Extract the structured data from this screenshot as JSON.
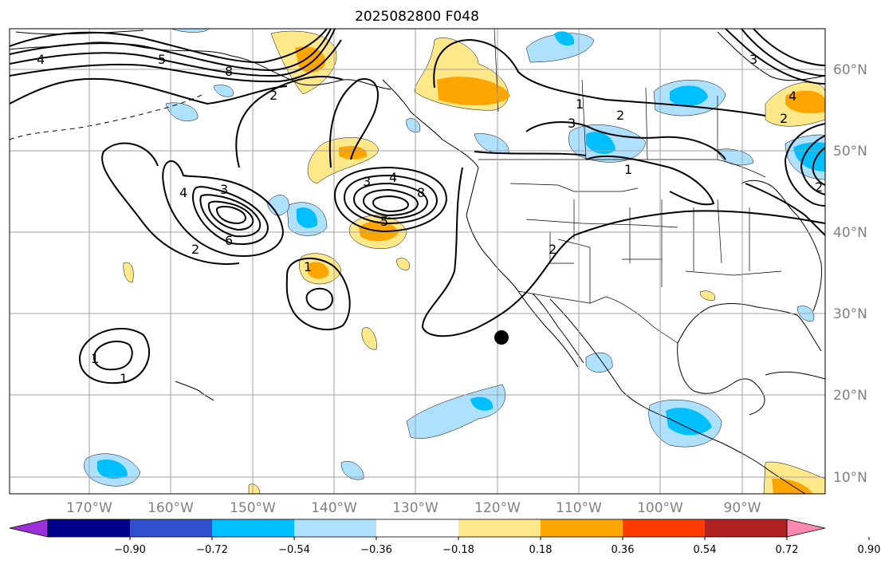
{
  "figure": {
    "title": "2025082800 F048",
    "marker": {
      "label": "forecast point",
      "lon": -119.7,
      "lat": 27.3
    }
  },
  "map": {
    "lon_range": [
      -180,
      -80
    ],
    "lat_range": [
      8,
      65
    ],
    "gridlines": true,
    "lon_labels": [
      "170°W",
      "160°W",
      "150°W",
      "140°W",
      "130°W",
      "120°W",
      "110°W",
      "100°W",
      "90°W"
    ],
    "lat_labels": [
      "60°N",
      "50°N",
      "40°N",
      "30°N",
      "20°N",
      "10°N"
    ],
    "contour_labels": [
      "4",
      "5",
      "8",
      "2",
      "3",
      "4",
      "8",
      "3",
      "4",
      "5",
      "6",
      "1",
      "2",
      "1",
      "1",
      "2",
      "3",
      "1",
      "2",
      "4",
      "2",
      "1",
      "2",
      "3"
    ]
  },
  "colorbar": {
    "ticks": [
      "−0.90",
      "−0.72",
      "−0.54",
      "−0.36",
      "−0.18",
      "0.18",
      "0.36",
      "0.54",
      "0.72",
      "0.90"
    ],
    "colors": [
      "#9b30d8",
      "#00008b",
      "#3050d0",
      "#00bfff",
      "#aee0ff",
      "#ffffff",
      "#ffe88a",
      "#ffa500",
      "#ff3c00",
      "#b22222",
      "#ff88b0"
    ]
  },
  "chart_data": {
    "type": "map",
    "title": "2025082800 F048",
    "description_fields": {
      "shaded_anomaly_levels": [
        -0.9,
        -0.72,
        -0.54,
        -0.36,
        -0.18,
        0.18,
        0.36,
        0.54,
        0.72,
        0.9
      ],
      "contour_levels_shown": [
        1,
        2,
        3,
        4,
        5,
        6,
        8
      ]
    }
  }
}
